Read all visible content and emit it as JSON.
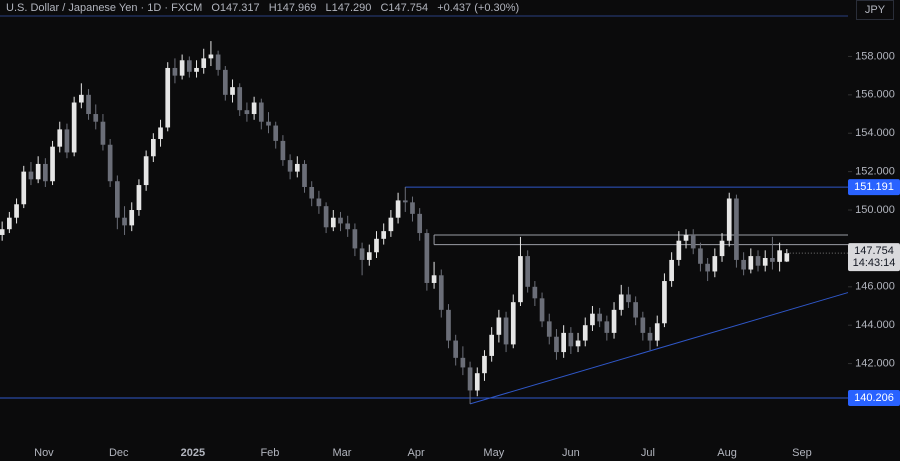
{
  "chart_data": {
    "type": "candlestick",
    "title": "U.S. Dollar / Japanese Yen · 1D · FXCM",
    "last_candle_labels": [
      "O147.317",
      "H147.969",
      "L147.290",
      "C147.754"
    ],
    "change": "+0.437 (+0.30%)",
    "currency": "JPY",
    "countdown": "14:43:14",
    "up_color": "#e6e6e6",
    "down_color": "#6b6e78",
    "level_color": "#2f57c8",
    "label_color": "#2962ff",
    "xlim": [
      -0.3,
      117.5
    ],
    "xticks": [
      {
        "value": 5.8,
        "label": "Nov"
      },
      {
        "value": 16.2,
        "label": "Dec"
      },
      {
        "value": 26.5,
        "label": "2025"
      },
      {
        "value": 37.2,
        "label": "Feb"
      },
      {
        "value": 47.2,
        "label": "Mar"
      },
      {
        "value": 57.5,
        "label": "Apr"
      },
      {
        "value": 68.3,
        "label": "May"
      },
      {
        "value": 79.0,
        "label": "Jun"
      },
      {
        "value": 89.7,
        "label": "Jul"
      },
      {
        "value": 100.7,
        "label": "Aug"
      },
      {
        "value": 111.1,
        "label": "Sep"
      }
    ],
    "ylim": [
      138.02,
      160.94
    ],
    "yticks": [
      {
        "value": 142,
        "label": "142.000"
      },
      {
        "value": 144,
        "label": "144.000"
      },
      {
        "value": 146,
        "label": "146.000"
      },
      {
        "value": 148,
        "label": "148.000"
      },
      {
        "value": 150,
        "label": "150.000"
      },
      {
        "value": 152,
        "label": "152.000"
      },
      {
        "value": 154,
        "label": "154.000"
      },
      {
        "value": 156,
        "label": "156.000"
      },
      {
        "value": 158,
        "label": "158.000"
      }
    ],
    "levels": [
      {
        "price": 151.191,
        "from": 56
      },
      {
        "price": 140.206
      }
    ],
    "zone": {
      "low": 148.2,
      "high": 148.7,
      "from": 60
    },
    "trendline": [
      [
        65,
        139.9
      ],
      [
        117.5,
        145.7
      ]
    ],
    "candles": [
      [
        148.7,
        149.4,
        148.4,
        149.0
      ],
      [
        149.0,
        149.9,
        148.8,
        149.6
      ],
      [
        149.6,
        150.6,
        149.3,
        150.3
      ],
      [
        150.3,
        152.3,
        150.1,
        152.0
      ],
      [
        152.0,
        152.5,
        151.3,
        151.6
      ],
      [
        151.6,
        152.8,
        151.4,
        152.4
      ],
      [
        152.4,
        152.7,
        151.2,
        151.5
      ],
      [
        151.5,
        153.6,
        151.3,
        153.3
      ],
      [
        153.3,
        154.6,
        153.0,
        154.2
      ],
      [
        154.2,
        154.5,
        152.7,
        153.0
      ],
      [
        153.0,
        155.9,
        152.8,
        155.6
      ],
      [
        155.6,
        156.6,
        155.3,
        156.0
      ],
      [
        156.0,
        156.3,
        154.7,
        155.0
      ],
      [
        155.0,
        155.5,
        154.2,
        154.6
      ],
      [
        154.6,
        155.0,
        153.1,
        153.4
      ],
      [
        153.4,
        153.7,
        151.2,
        151.5
      ],
      [
        151.5,
        151.8,
        149.0,
        149.6
      ],
      [
        149.6,
        150.2,
        148.7,
        149.2
      ],
      [
        149.2,
        150.4,
        148.9,
        150.0
      ],
      [
        150.0,
        151.6,
        149.7,
        151.3
      ],
      [
        151.3,
        153.1,
        151.0,
        152.8
      ],
      [
        152.8,
        154.0,
        152.5,
        153.7
      ],
      [
        153.7,
        154.7,
        153.3,
        154.3
      ],
      [
        154.3,
        157.7,
        154.1,
        157.4
      ],
      [
        157.4,
        157.9,
        156.6,
        157.0
      ],
      [
        157.0,
        158.1,
        156.8,
        157.8
      ],
      [
        157.8,
        158.0,
        156.9,
        157.2
      ],
      [
        157.2,
        157.8,
        156.9,
        157.4
      ],
      [
        157.4,
        158.4,
        157.1,
        157.9
      ],
      [
        157.9,
        158.8,
        157.5,
        158.1
      ],
      [
        158.1,
        158.3,
        157.0,
        157.3
      ],
      [
        157.3,
        157.5,
        155.7,
        156.0
      ],
      [
        156.0,
        156.8,
        155.6,
        156.4
      ],
      [
        156.4,
        156.6,
        154.9,
        155.2
      ],
      [
        155.2,
        155.6,
        154.6,
        155.0
      ],
      [
        155.0,
        155.9,
        154.7,
        155.6
      ],
      [
        155.6,
        155.8,
        154.2,
        154.6
      ],
      [
        154.6,
        155.1,
        154.0,
        154.4
      ],
      [
        154.4,
        154.6,
        153.2,
        153.6
      ],
      [
        153.6,
        153.9,
        152.3,
        152.6
      ],
      [
        152.6,
        152.9,
        151.6,
        152.0
      ],
      [
        152.0,
        152.8,
        151.7,
        152.4
      ],
      [
        152.4,
        152.6,
        150.9,
        151.2
      ],
      [
        151.2,
        151.5,
        150.2,
        150.6
      ],
      [
        150.6,
        151.0,
        149.8,
        150.2
      ],
      [
        150.2,
        150.4,
        148.8,
        149.1
      ],
      [
        149.1,
        150.0,
        148.9,
        149.6
      ],
      [
        149.6,
        149.9,
        148.9,
        149.3
      ],
      [
        149.3,
        149.7,
        148.6,
        149.0
      ],
      [
        149.0,
        149.3,
        147.6,
        148.0
      ],
      [
        148.0,
        148.3,
        146.6,
        147.4
      ],
      [
        147.4,
        148.2,
        147.1,
        147.8
      ],
      [
        147.8,
        148.9,
        147.5,
        148.5
      ],
      [
        148.5,
        149.3,
        148.2,
        148.9
      ],
      [
        148.9,
        150.0,
        148.6,
        149.6
      ],
      [
        149.6,
        150.9,
        149.3,
        150.5
      ],
      [
        150.5,
        151.2,
        149.9,
        150.4
      ],
      [
        150.4,
        150.7,
        149.4,
        149.8
      ],
      [
        149.8,
        150.1,
        148.4,
        148.8
      ],
      [
        148.8,
        149.0,
        145.8,
        146.2
      ],
      [
        146.2,
        147.3,
        145.9,
        146.6
      ],
      [
        146.6,
        146.9,
        144.4,
        144.8
      ],
      [
        144.8,
        145.1,
        142.8,
        143.2
      ],
      [
        143.2,
        143.5,
        141.9,
        142.3
      ],
      [
        142.3,
        142.9,
        141.4,
        141.8
      ],
      [
        141.8,
        142.1,
        139.9,
        140.6
      ],
      [
        140.6,
        141.8,
        140.3,
        141.5
      ],
      [
        141.5,
        142.7,
        141.1,
        142.4
      ],
      [
        142.4,
        143.9,
        142.1,
        143.5
      ],
      [
        143.5,
        144.8,
        143.1,
        144.4
      ],
      [
        144.4,
        144.7,
        142.6,
        143.0
      ],
      [
        143.0,
        145.6,
        142.8,
        145.2
      ],
      [
        145.2,
        148.6,
        145.0,
        147.6
      ],
      [
        147.6,
        147.9,
        145.7,
        146.0
      ],
      [
        146.0,
        146.3,
        145.0,
        145.4
      ],
      [
        145.4,
        145.7,
        143.9,
        144.2
      ],
      [
        144.2,
        144.6,
        143.0,
        143.4
      ],
      [
        143.4,
        143.8,
        142.2,
        142.6
      ],
      [
        142.6,
        144.0,
        142.3,
        143.6
      ],
      [
        143.6,
        143.9,
        142.5,
        142.9
      ],
      [
        142.9,
        143.6,
        142.6,
        143.2
      ],
      [
        143.2,
        144.4,
        142.9,
        144.0
      ],
      [
        144.0,
        145.0,
        143.7,
        144.6
      ],
      [
        144.6,
        144.9,
        143.9,
        144.2
      ],
      [
        144.2,
        144.5,
        143.2,
        143.6
      ],
      [
        143.6,
        145.2,
        143.3,
        144.8
      ],
      [
        144.8,
        146.1,
        144.5,
        145.6
      ],
      [
        145.6,
        146.0,
        144.9,
        145.2
      ],
      [
        145.2,
        145.5,
        144.0,
        144.4
      ],
      [
        144.4,
        144.7,
        143.2,
        143.6
      ],
      [
        143.6,
        143.9,
        142.7,
        143.2
      ],
      [
        143.2,
        144.5,
        142.9,
        144.1
      ],
      [
        144.1,
        146.7,
        143.9,
        146.3
      ],
      [
        146.3,
        147.8,
        146.0,
        147.4
      ],
      [
        147.4,
        148.9,
        147.1,
        148.4
      ],
      [
        148.4,
        149.0,
        148.0,
        148.7
      ],
      [
        148.7,
        149.0,
        147.7,
        148.0
      ],
      [
        148.0,
        148.3,
        146.8,
        147.2
      ],
      [
        147.2,
        147.5,
        146.3,
        146.8
      ],
      [
        146.8,
        148.0,
        146.5,
        147.6
      ],
      [
        147.6,
        148.8,
        147.3,
        148.4
      ],
      [
        148.4,
        150.9,
        148.1,
        150.6
      ],
      [
        150.6,
        150.8,
        147.0,
        147.4
      ],
      [
        147.4,
        147.8,
        146.6,
        146.9
      ],
      [
        146.9,
        148.0,
        146.7,
        147.6
      ],
      [
        147.6,
        147.9,
        146.8,
        147.1
      ],
      [
        147.1,
        147.9,
        146.8,
        147.5
      ],
      [
        147.5,
        148.6,
        146.9,
        147.3
      ],
      [
        147.3,
        148.3,
        146.8,
        147.9
      ],
      [
        147.317,
        147.969,
        147.29,
        147.754
      ]
    ]
  }
}
